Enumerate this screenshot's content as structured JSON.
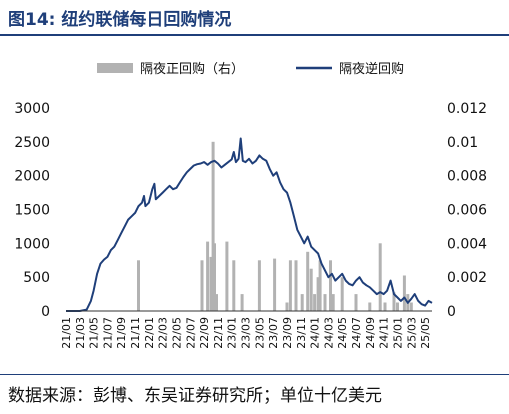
{
  "header": {
    "title": "图14:  纽约联储每日回购情况"
  },
  "footer": {
    "source": "数据来源：彭博、东吴证券研究所；单位十亿美元"
  },
  "chart_data": {
    "type": "bar+line",
    "colors": {
      "bar": "#b2b2b2",
      "line": "#1f3f7a",
      "axis": "#333333"
    },
    "legend": [
      "隔夜正回购（右）",
      "隔夜逆回购"
    ],
    "legend_placement": "top",
    "grid": false,
    "left_axis": {
      "ylim": [
        0,
        3000
      ],
      "ticks": [
        "0",
        "500",
        "1000",
        "1500",
        "2000",
        "2500",
        "3000"
      ]
    },
    "right_axis": {
      "ylim": [
        0,
        0.012
      ],
      "ticks": [
        "0",
        "0.002",
        "0.004",
        "0.006",
        "0.008",
        "0.01",
        "0.012"
      ]
    },
    "x_tick_labels": [
      "21/01",
      "21/03",
      "21/05",
      "21/07",
      "21/09",
      "21/11",
      "22/01",
      "22/03",
      "22/05",
      "22/07",
      "22/09",
      "22/11",
      "23/01",
      "23/03",
      "23/05",
      "23/07",
      "23/09",
      "23/11",
      "24/01",
      "24/03",
      "24/05",
      "24/07",
      "24/09",
      "24/11",
      "25/01",
      "25/03",
      "25/05"
    ],
    "x_range_months": [
      0,
      53
    ],
    "reverse_repo_series": {
      "name": "隔夜逆回购",
      "points": [
        [
          0,
          0
        ],
        [
          1,
          0
        ],
        [
          2,
          0
        ],
        [
          3,
          20
        ],
        [
          3.6,
          150
        ],
        [
          4,
          300
        ],
        [
          4.5,
          550
        ],
        [
          5,
          700
        ],
        [
          5.5,
          760
        ],
        [
          6,
          800
        ],
        [
          6.5,
          900
        ],
        [
          7,
          950
        ],
        [
          7.5,
          1050
        ],
        [
          8,
          1150
        ],
        [
          8.5,
          1250
        ],
        [
          9,
          1350
        ],
        [
          9.5,
          1400
        ],
        [
          10,
          1450
        ],
        [
          10.5,
          1550
        ],
        [
          11,
          1600
        ],
        [
          11.3,
          1700
        ],
        [
          11.5,
          1550
        ],
        [
          12,
          1600
        ],
        [
          12.5,
          1800
        ],
        [
          12.8,
          1880
        ],
        [
          13,
          1650
        ],
        [
          13.5,
          1700
        ],
        [
          14,
          1750
        ],
        [
          14.5,
          1800
        ],
        [
          15,
          1850
        ],
        [
          15.5,
          1800
        ],
        [
          16,
          1820
        ],
        [
          16.5,
          1900
        ],
        [
          17,
          1980
        ],
        [
          17.5,
          2050
        ],
        [
          18,
          2100
        ],
        [
          18.5,
          2150
        ],
        [
          19,
          2170
        ],
        [
          19.5,
          2180
        ],
        [
          20,
          2200
        ],
        [
          20.5,
          2160
        ],
        [
          21,
          2200
        ],
        [
          21.5,
          2220
        ],
        [
          22,
          2180
        ],
        [
          22.5,
          2120
        ],
        [
          23,
          2160
        ],
        [
          23.5,
          2200
        ],
        [
          24,
          2240
        ],
        [
          24.3,
          2350
        ],
        [
          24.6,
          2200
        ],
        [
          25,
          2250
        ],
        [
          25.3,
          2550
        ],
        [
          25.6,
          2220
        ],
        [
          26,
          2200
        ],
        [
          26.5,
          2250
        ],
        [
          27,
          2180
        ],
        [
          27.5,
          2220
        ],
        [
          28,
          2300
        ],
        [
          28.5,
          2250
        ],
        [
          29,
          2220
        ],
        [
          29.5,
          2100
        ],
        [
          30,
          2000
        ],
        [
          30.5,
          2050
        ],
        [
          31,
          1900
        ],
        [
          31.5,
          1800
        ],
        [
          32,
          1750
        ],
        [
          32.5,
          1600
        ],
        [
          33,
          1400
        ],
        [
          33.5,
          1200
        ],
        [
          34,
          1100
        ],
        [
          34.5,
          1000
        ],
        [
          35,
          1100
        ],
        [
          35.5,
          950
        ],
        [
          36,
          900
        ],
        [
          36.5,
          850
        ],
        [
          37,
          700
        ],
        [
          37.5,
          600
        ],
        [
          38,
          500
        ],
        [
          38.5,
          550
        ],
        [
          39,
          450
        ],
        [
          39.5,
          500
        ],
        [
          40,
          550
        ],
        [
          40.5,
          450
        ],
        [
          41,
          400
        ],
        [
          41.5,
          380
        ],
        [
          42,
          450
        ],
        [
          42.5,
          500
        ],
        [
          43,
          420
        ],
        [
          43.5,
          380
        ],
        [
          44,
          350
        ],
        [
          44.5,
          300
        ],
        [
          45,
          250
        ],
        [
          45.5,
          280
        ],
        [
          46,
          250
        ],
        [
          46.5,
          300
        ],
        [
          47,
          450
        ],
        [
          47.5,
          250
        ],
        [
          48,
          200
        ],
        [
          48.5,
          150
        ],
        [
          49,
          200
        ],
        [
          49.5,
          120
        ],
        [
          50,
          180
        ],
        [
          50.5,
          250
        ],
        [
          51,
          150
        ],
        [
          51.5,
          100
        ],
        [
          52,
          80
        ],
        [
          52.5,
          150
        ],
        [
          53,
          120
        ]
      ]
    },
    "positive_repo_series": {
      "name": "隔夜正回购（右）",
      "bars": [
        [
          10.5,
          0.003
        ],
        [
          19.7,
          0.003
        ],
        [
          20.5,
          0.0041
        ],
        [
          21,
          0.0032
        ],
        [
          21.3,
          0.01
        ],
        [
          21.5,
          0.004
        ],
        [
          21.8,
          0.001
        ],
        [
          23.3,
          0.0041
        ],
        [
          24.3,
          0.003
        ],
        [
          25.5,
          0.001
        ],
        [
          28,
          0.003
        ],
        [
          30.2,
          0.0031
        ],
        [
          32,
          0.0005
        ],
        [
          32.5,
          0.003
        ],
        [
          33.3,
          0.003
        ],
        [
          34.2,
          0.001
        ],
        [
          35,
          0.0035
        ],
        [
          35.5,
          0.0025
        ],
        [
          36,
          0.001
        ],
        [
          36.5,
          0.002
        ],
        [
          36.8,
          0.003
        ],
        [
          37.5,
          0.001
        ],
        [
          38.3,
          0.003
        ],
        [
          38.7,
          0.001
        ],
        [
          40,
          0.002
        ],
        [
          42,
          0.001
        ],
        [
          44,
          0.0005
        ],
        [
          45.5,
          0.004
        ],
        [
          46.2,
          0.0005
        ],
        [
          47.5,
          0.0011
        ],
        [
          48,
          0.0005
        ],
        [
          49,
          0.0021
        ],
        [
          49.5,
          0.001
        ],
        [
          50,
          0.0005
        ]
      ]
    }
  }
}
